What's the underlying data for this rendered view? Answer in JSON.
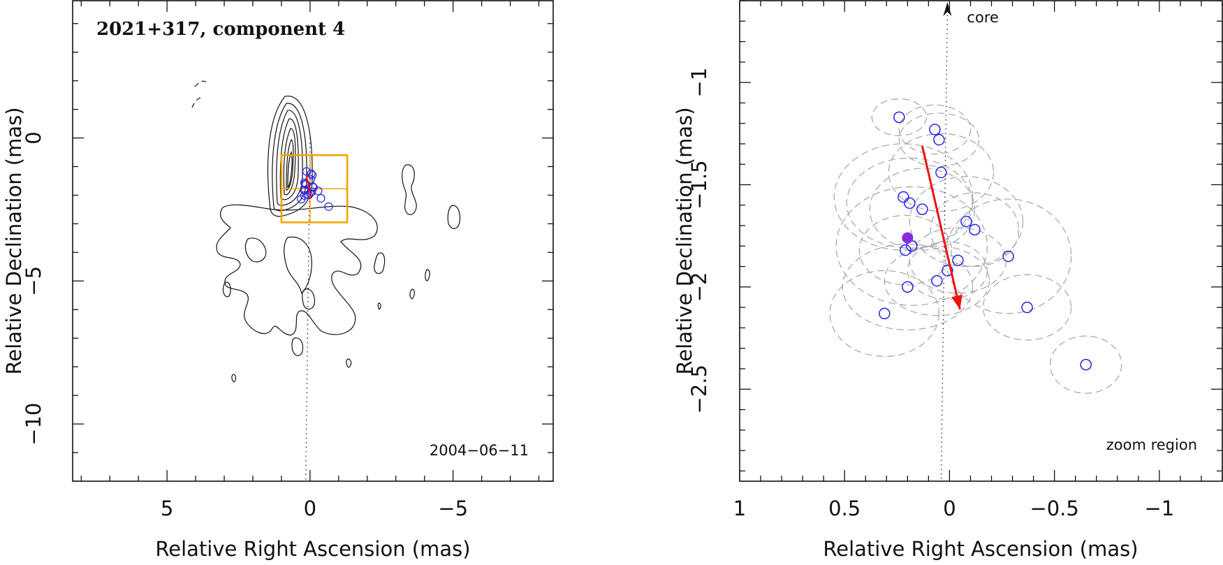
{
  "chart_data": [
    {
      "type": "contour",
      "title": "2021+317, component 4",
      "date_label": "2004−06−11",
      "xlabel": "Relative Right Ascension (mas)",
      "ylabel": "Relative Declination (mas)",
      "xlim": [
        8.3,
        -8.5
      ],
      "ylim": [
        -12.0,
        4.8
      ],
      "xticks_major": [
        5,
        0,
        -5
      ],
      "xtick_labels": [
        "5",
        "0",
        "−5"
      ],
      "yticks_major": [
        0,
        -5,
        -10
      ],
      "ytick_labels": [
        "0",
        "−5",
        "−10"
      ],
      "core_line": {
        "x_top": 0.0,
        "x_bottom": 0.15
      },
      "zoom_box": {
        "x": [
          1.0,
          -1.3
        ],
        "y": [
          -0.6,
          -2.95
        ]
      },
      "component_points": [
        {
          "x": 0.12,
          "y": -1.17
        },
        {
          "x": -0.04,
          "y": -1.25
        },
        {
          "x": -0.08,
          "y": -1.3
        },
        {
          "x": -0.02,
          "y": -1.45
        },
        {
          "x": 0.19,
          "y": -1.56
        },
        {
          "x": 0.16,
          "y": -1.6
        },
        {
          "x": 0.14,
          "y": -1.63
        },
        {
          "x": -0.09,
          "y": -1.7
        },
        {
          "x": -0.12,
          "y": -1.73
        },
        {
          "x": 0.2,
          "y": -1.83
        },
        {
          "x": 0.17,
          "y": -1.82
        },
        {
          "x": -0.28,
          "y": -1.85
        },
        {
          "x": -0.06,
          "y": -1.88
        },
        {
          "x": 0.0,
          "y": -1.93
        },
        {
          "x": 0.05,
          "y": -1.99
        },
        {
          "x": 0.2,
          "y": -2.01
        },
        {
          "x": -0.38,
          "y": -2.11
        },
        {
          "x": 0.31,
          "y": -2.14
        },
        {
          "x": -0.65,
          "y": -2.4
        }
      ],
      "motion_arrow": {
        "from": {
          "x": 0.13,
          "y": -1.31
        },
        "to": {
          "x": -0.05,
          "y": -2.11
        }
      }
    },
    {
      "type": "scatter",
      "title": "",
      "corner_label": "zoom region",
      "core_label": "core",
      "xlabel": "Relative Right Ascension (mas)",
      "ylabel": "Relative Declination (mas)",
      "xlim": [
        1.0,
        -1.3
      ],
      "ylim": [
        -2.95,
        -0.6
      ],
      "xticks_major": [
        1,
        0.5,
        0,
        -0.5,
        -1
      ],
      "xtick_labels": [
        "1",
        "0.5",
        "0",
        "−0.5",
        "−1"
      ],
      "yticks_major": [
        -1,
        -1.5,
        -2,
        -2.5
      ],
      "ytick_labels": [
        "−1",
        "−1.5",
        "−2",
        "−2.5"
      ],
      "core_line": {
        "x_top": 0.01,
        "x_bottom": 0.04
      },
      "points": [
        {
          "x": 0.24,
          "y": -1.17
        },
        {
          "x": 0.07,
          "y": -1.23
        },
        {
          "x": 0.05,
          "y": -1.28
        },
        {
          "x": 0.04,
          "y": -1.44
        },
        {
          "x": 0.22,
          "y": -1.56
        },
        {
          "x": 0.19,
          "y": -1.59
        },
        {
          "x": 0.13,
          "y": -1.62
        },
        {
          "x": -0.08,
          "y": -1.68
        },
        {
          "x": -0.12,
          "y": -1.72
        },
        {
          "x": 0.21,
          "y": -1.82
        },
        {
          "x": 0.18,
          "y": -1.8
        },
        {
          "x": -0.28,
          "y": -1.85
        },
        {
          "x": -0.04,
          "y": -1.87
        },
        {
          "x": 0.01,
          "y": -1.92
        },
        {
          "x": 0.06,
          "y": -1.97
        },
        {
          "x": 0.2,
          "y": -2.0
        },
        {
          "x": -0.37,
          "y": -2.1
        },
        {
          "x": 0.31,
          "y": -2.13
        },
        {
          "x": -0.65,
          "y": -2.38
        }
      ],
      "error_ellipses": [
        {
          "cx": 0.24,
          "cy": -1.17,
          "rx": 0.13,
          "ry": 0.09
        },
        {
          "cx": 0.07,
          "cy": -1.23,
          "rx": 0.17,
          "ry": 0.12
        },
        {
          "cx": 0.05,
          "cy": -1.28,
          "rx": 0.19,
          "ry": 0.13
        },
        {
          "cx": 0.04,
          "cy": -1.44,
          "rx": 0.25,
          "ry": 0.19
        },
        {
          "cx": 0.22,
          "cy": -1.56,
          "rx": 0.33,
          "ry": 0.26
        },
        {
          "cx": 0.19,
          "cy": -1.59,
          "rx": 0.3,
          "ry": 0.22
        },
        {
          "cx": 0.13,
          "cy": -1.62,
          "rx": 0.25,
          "ry": 0.2
        },
        {
          "cx": -0.08,
          "cy": -1.68,
          "rx": 0.27,
          "ry": 0.22
        },
        {
          "cx": -0.12,
          "cy": -1.72,
          "rx": 0.21,
          "ry": 0.18
        },
        {
          "cx": 0.21,
          "cy": -1.82,
          "rx": 0.22,
          "ry": 0.17
        },
        {
          "cx": 0.18,
          "cy": -1.8,
          "rx": 0.36,
          "ry": 0.29
        },
        {
          "cx": -0.28,
          "cy": -1.85,
          "rx": 0.3,
          "ry": 0.28
        },
        {
          "cx": -0.04,
          "cy": -1.87,
          "rx": 0.23,
          "ry": 0.16
        },
        {
          "cx": 0.01,
          "cy": -1.92,
          "rx": 0.19,
          "ry": 0.14
        },
        {
          "cx": 0.06,
          "cy": -1.97,
          "rx": 0.25,
          "ry": 0.17
        },
        {
          "cx": 0.2,
          "cy": -2.0,
          "rx": 0.31,
          "ry": 0.21
        },
        {
          "cx": -0.37,
          "cy": -2.1,
          "rx": 0.21,
          "ry": 0.16
        },
        {
          "cx": 0.31,
          "cy": -2.13,
          "rx": 0.26,
          "ry": 0.21
        },
        {
          "cx": -0.65,
          "cy": -2.38,
          "rx": 0.17,
          "ry": 0.14
        }
      ],
      "filled_point": {
        "x": 0.2,
        "y": -1.76
      },
      "motion_arrow": {
        "from": {
          "x": 0.13,
          "y": -1.31
        },
        "to": {
          "x": -0.05,
          "y": -2.11
        }
      },
      "colors": {
        "points": "#2222ee",
        "filled_point": "#8a2be2",
        "arrow": "#ee1111",
        "ellipses": "#aaaaaa",
        "zoom_box": "#f5a300"
      }
    }
  ]
}
